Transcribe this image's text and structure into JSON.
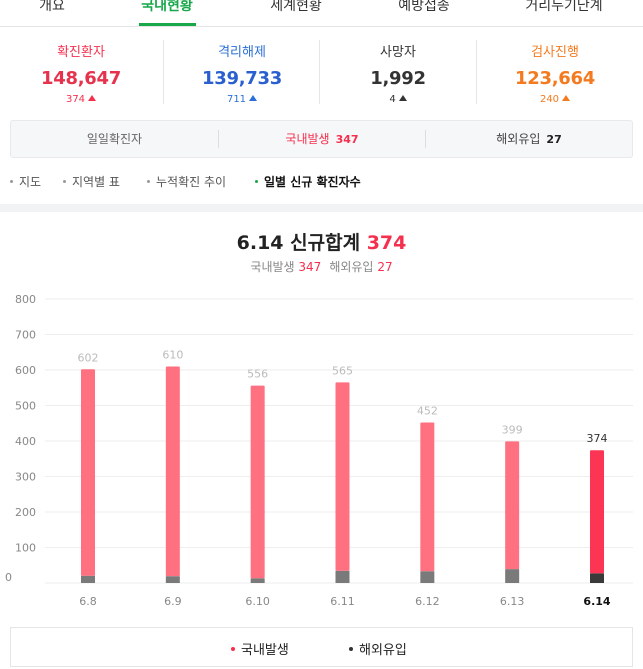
{
  "tabs": [
    {
      "label": "개요",
      "active": false
    },
    {
      "label": "국내현황",
      "active": true
    },
    {
      "label": "세계현황",
      "active": false
    },
    {
      "label": "예방접종",
      "active": false
    },
    {
      "label": "거리두기단계",
      "active": false
    }
  ],
  "stats": [
    {
      "label": "확진환자",
      "value": "148,647",
      "delta": "374",
      "color": "#f5304e",
      "delta_color": "#f5304e",
      "value_color": "#e6334d"
    },
    {
      "label": "격리해제",
      "value": "139,733",
      "delta": "711",
      "color": "#2b6fd6",
      "delta_color": "#2b6fd6",
      "value_color": "#2b5fcf"
    },
    {
      "label": "사망자",
      "value": "1,992",
      "delta": "4",
      "color": "#333333",
      "delta_color": "#333333",
      "value_color": "#333333"
    },
    {
      "label": "검사진행",
      "value": "123,664",
      "delta": "240",
      "color": "#f47a1f",
      "delta_color": "#f47a1f",
      "value_color": "#f47a1f"
    }
  ],
  "daily": {
    "label": "일일확진자",
    "domestic_label": "국내발생",
    "domestic_value": "347",
    "overseas_label": "해외유입",
    "overseas_value": "27"
  },
  "subtabs": [
    {
      "label": "지도",
      "active": false
    },
    {
      "label": "지역별 표",
      "active": false
    },
    {
      "label": "누적확진 추이",
      "active": false
    },
    {
      "label": "일별 신규 확진자수",
      "active": true
    }
  ],
  "chart_heading": {
    "date": "6.14",
    "title_label": "신규합계",
    "total": "374",
    "domestic_label": "국내발생",
    "domestic_value": "347",
    "overseas_label": "해외유입",
    "overseas_value": "27"
  },
  "chart_data": {
    "type": "bar",
    "stacked": true,
    "categories": [
      "6.8",
      "6.9",
      "6.10",
      "6.11",
      "6.12",
      "6.13",
      "6.14"
    ],
    "series": [
      {
        "name": "국내발생",
        "values": [
          582,
          591,
          543,
          531,
          419,
          360,
          347
        ]
      },
      {
        "name": "해외유입",
        "values": [
          20,
          19,
          13,
          34,
          33,
          39,
          27
        ]
      }
    ],
    "totals": [
      602,
      610,
      556,
      565,
      452,
      399,
      374
    ],
    "y_ticks": [
      0,
      100,
      200,
      300,
      400,
      500,
      600,
      700,
      800
    ],
    "ylim": [
      0,
      800
    ],
    "grid": true,
    "highlight_last": true,
    "colors": {
      "domestic": "#ff7081",
      "overseas": "#7a7a7a",
      "domestic_highlight": "#fb3553",
      "overseas_highlight": "#3a3a3a",
      "grid": "#eeeeee",
      "tick": "#888888",
      "value_label": "#bbbbbb",
      "value_label_highlight": "#333333"
    }
  },
  "legend": [
    {
      "label": "국내발생",
      "color": "#f5304e"
    },
    {
      "label": "해외유입",
      "color": "#333333"
    }
  ]
}
